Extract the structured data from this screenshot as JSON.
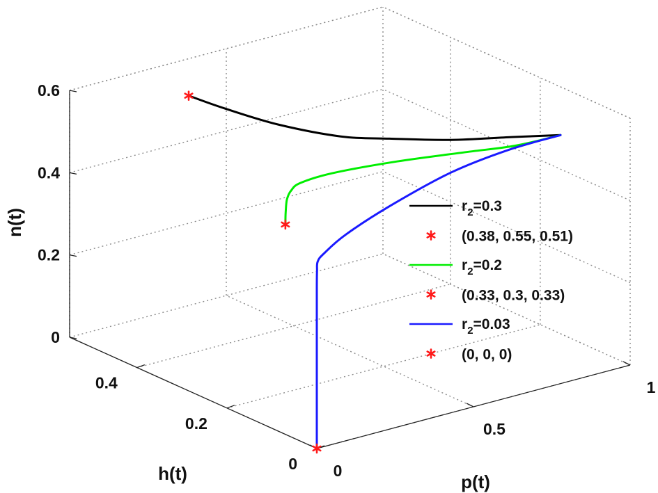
{
  "chart_data": {
    "type": "line3d",
    "title": "",
    "xlabel": "p(t)",
    "ylabel": "h(t)",
    "zlabel": "n(t)",
    "xlim": [
      0,
      1
    ],
    "ylim": [
      0,
      0.55
    ],
    "zlim": [
      0,
      0.6
    ],
    "xticks": [
      0,
      0.5,
      1
    ],
    "xtick_labels": [
      "0",
      "0.5",
      "1"
    ],
    "yticks": [
      0,
      0.2,
      0.4
    ],
    "ytick_labels": [
      "0",
      "0.2",
      "0.4"
    ],
    "zticks": [
      0,
      0.2,
      0.4,
      0.6
    ],
    "ztick_labels": [
      "0",
      "0.2",
      "0.4",
      "0.6"
    ],
    "grid": true,
    "legend_position": "right",
    "series": [
      {
        "name_main": "r",
        "name_sub": "2",
        "name_tail": "=0.3",
        "color": "#000000",
        "x": [
          0.38,
          0.45,
          0.55,
          0.65,
          0.72,
          0.8,
          0.88,
          0.95
        ],
        "y": [
          0.55,
          0.52,
          0.47,
          0.4,
          0.34,
          0.26,
          0.18,
          0.12
        ],
        "z": [
          0.51,
          0.48,
          0.445,
          0.43,
          0.44,
          0.46,
          0.49,
          0.51
        ]
      },
      {
        "name_main": "r",
        "name_sub": "2",
        "name_tail": "=0.2",
        "color": "#00ee00",
        "x": [
          0.33,
          0.331,
          0.335,
          0.345,
          0.37,
          0.45,
          0.6,
          0.75,
          0.85,
          0.95
        ],
        "y": [
          0.3,
          0.3,
          0.3,
          0.298,
          0.295,
          0.28,
          0.24,
          0.19,
          0.15,
          0.12
        ],
        "z": [
          0.33,
          0.36,
          0.39,
          0.41,
          0.425,
          0.44,
          0.458,
          0.475,
          0.49,
          0.51
        ]
      },
      {
        "name_main": "r",
        "name_sub": "2",
        "name_tail": "=0.03",
        "color": "#1a1aff",
        "x": [
          0.0,
          0.0,
          0.0,
          0.002,
          0.01,
          0.04,
          0.15,
          0.35,
          0.6,
          0.8,
          0.95
        ],
        "y": [
          0.0,
          0.0,
          0.0,
          0.001,
          0.005,
          0.012,
          0.04,
          0.08,
          0.12,
          0.13,
          0.12
        ],
        "z": [
          0.0,
          0.2,
          0.38,
          0.43,
          0.45,
          0.46,
          0.47,
          0.48,
          0.49,
          0.5,
          0.51
        ]
      }
    ],
    "markers": [
      {
        "label": "(0.38, 0.55, 0.51)",
        "x": 0.38,
        "y": 0.55,
        "z": 0.51,
        "color": "#ff1a1a"
      },
      {
        "label": "(0.33, 0.3, 0.33)",
        "x": 0.33,
        "y": 0.3,
        "z": 0.33,
        "color": "#ff1a1a"
      },
      {
        "label": "(0, 0, 0)",
        "x": 0,
        "y": 0,
        "z": 0,
        "color": "#ff1a1a"
      }
    ]
  }
}
